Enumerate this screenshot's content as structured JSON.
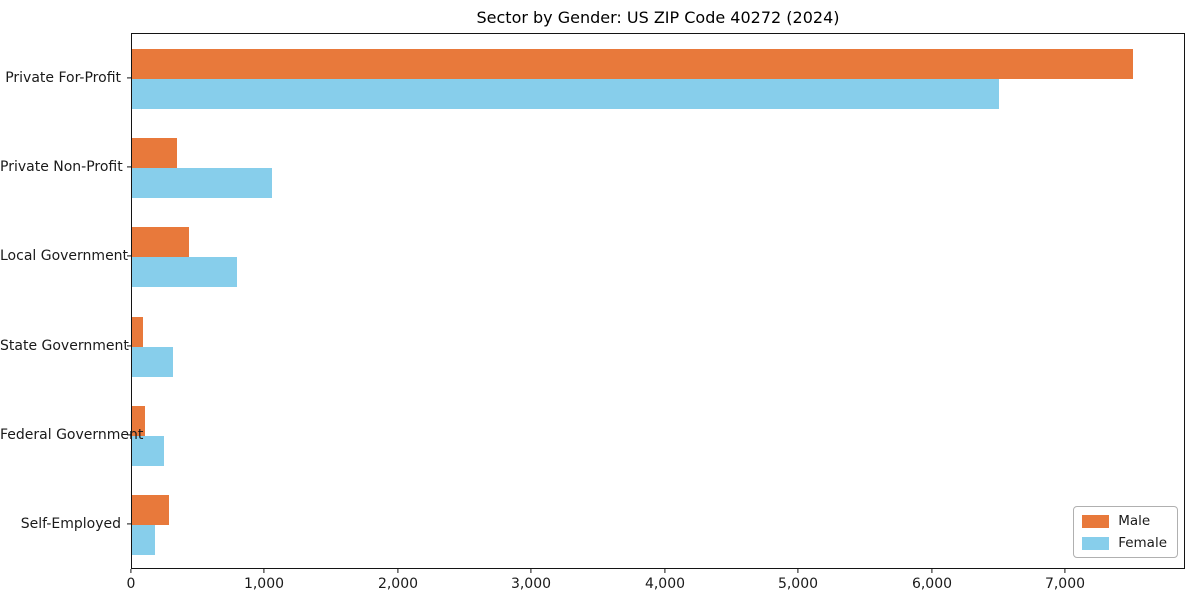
{
  "title": "Sector by Gender: US ZIP Code 40272 (2024)",
  "legend": {
    "items": [
      {
        "label": "Male",
        "color": "#E8793B"
      },
      {
        "label": "Female",
        "color": "#87CEEB"
      }
    ],
    "position": "lower right"
  },
  "chart_data": {
    "type": "bar",
    "orientation": "horizontal",
    "title": "Sector by Gender: US ZIP Code 40272 (2024)",
    "xlabel": "",
    "ylabel": "",
    "categories": [
      "Private For-Profit",
      "Private Non-Profit",
      "Local Government",
      "State Government",
      "Federal Government",
      "Self-Employed"
    ],
    "series": [
      {
        "name": "Male",
        "color": "#E8793B",
        "values": [
          7500,
          340,
          430,
          80,
          100,
          280
        ]
      },
      {
        "name": "Female",
        "color": "#87CEEB",
        "values": [
          6500,
          1050,
          790,
          310,
          240,
          170
        ]
      }
    ],
    "xlim": [
      0,
      7900
    ],
    "xticks": [
      0,
      1000,
      2000,
      3000,
      4000,
      5000,
      6000,
      7000
    ],
    "xtick_labels": [
      "0",
      "1,000",
      "2,000",
      "3,000",
      "4,000",
      "5,000",
      "6,000",
      "7,000"
    ],
    "grid": false,
    "legend_position": "lower right"
  }
}
